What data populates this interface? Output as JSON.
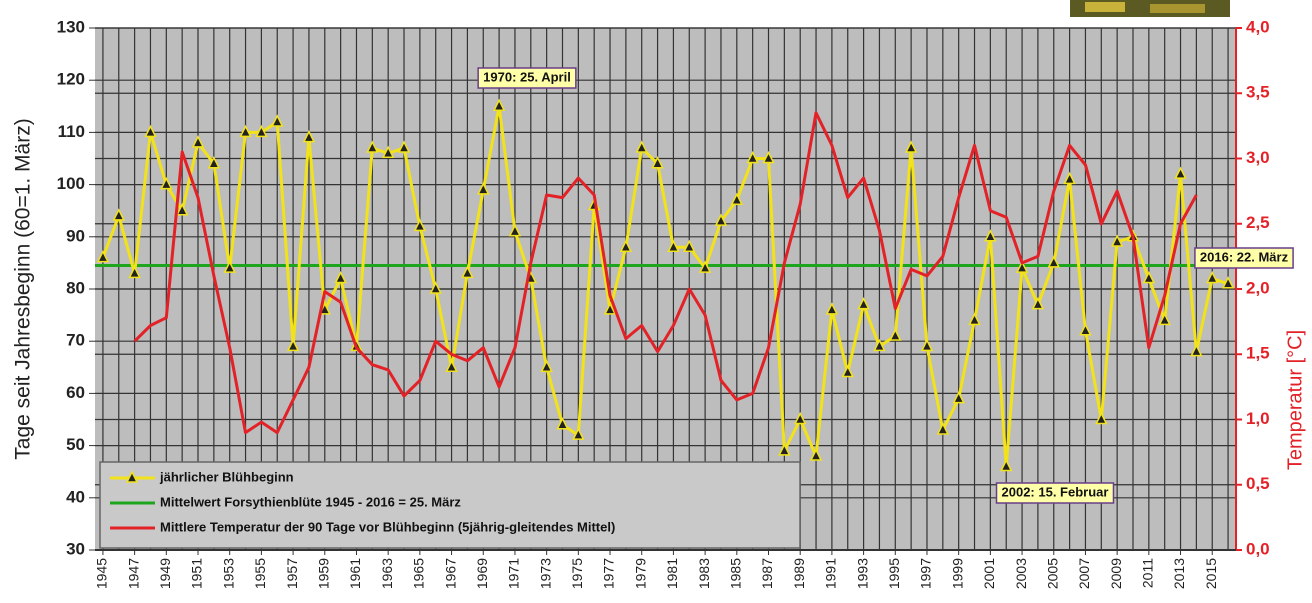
{
  "chart_data": {
    "type": "line",
    "x": [
      1945,
      1946,
      1947,
      1948,
      1949,
      1950,
      1951,
      1952,
      1953,
      1954,
      1955,
      1956,
      1957,
      1958,
      1959,
      1960,
      1961,
      1962,
      1963,
      1964,
      1965,
      1966,
      1967,
      1968,
      1969,
      1970,
      1971,
      1972,
      1973,
      1974,
      1975,
      1976,
      1977,
      1978,
      1979,
      1980,
      1981,
      1982,
      1983,
      1984,
      1985,
      1986,
      1987,
      1988,
      1989,
      1990,
      1991,
      1992,
      1993,
      1994,
      1995,
      1996,
      1997,
      1998,
      1999,
      2000,
      2001,
      2002,
      2003,
      2004,
      2005,
      2006,
      2007,
      2008,
      2009,
      2010,
      2011,
      2012,
      2013,
      2014,
      2015,
      2016
    ],
    "xlim": [
      1944.5,
      2016.5
    ],
    "xticks": [
      1945,
      1947,
      1949,
      1951,
      1953,
      1955,
      1957,
      1959,
      1961,
      1963,
      1965,
      1967,
      1969,
      1971,
      1973,
      1975,
      1977,
      1979,
      1981,
      1983,
      1985,
      1987,
      1989,
      1991,
      1993,
      1995,
      1997,
      1999,
      2001,
      2003,
      2005,
      2007,
      2009,
      2011,
      2013,
      2015
    ],
    "ylim": [
      30,
      130
    ],
    "yticks": [
      30,
      40,
      50,
      60,
      70,
      80,
      90,
      100,
      110,
      120,
      130
    ],
    "y2lim": [
      0,
      4
    ],
    "y2ticks": [
      {
        "value": 0,
        "label": "0,0"
      },
      {
        "value": 0.5,
        "label": "0,5"
      },
      {
        "value": 1,
        "label": "1,0"
      },
      {
        "value": 1.5,
        "label": "1,5"
      },
      {
        "value": 2,
        "label": "2,0"
      },
      {
        "value": 2.5,
        "label": "2,5"
      },
      {
        "value": 3,
        "label": "3,0"
      },
      {
        "value": 3.5,
        "label": "3,5"
      },
      {
        "value": 4,
        "label": "4,0"
      }
    ],
    "ylabel": "Tage seit Jahresbeginn (60=1. März)",
    "y2label": "Temperatur [°C]",
    "grid": true,
    "series": [
      {
        "name": "jährlicher Blühbeginn",
        "color": "#f2e21a",
        "values": [
          86,
          94,
          83,
          110,
          100,
          95,
          108,
          104,
          84,
          110,
          110,
          112,
          69,
          109,
          76,
          82,
          69,
          107,
          106,
          107,
          92,
          80,
          65,
          83,
          99,
          115,
          91,
          82,
          65,
          54,
          52,
          96,
          76,
          88,
          107,
          104,
          88,
          88,
          84,
          93,
          97,
          105,
          105,
          49,
          55,
          48,
          76,
          64,
          77,
          69,
          71,
          107,
          69,
          53,
          59,
          74,
          90,
          46,
          84,
          77,
          85,
          101,
          72,
          55,
          89,
          90,
          82,
          74,
          102,
          68,
          82,
          81
        ]
      },
      {
        "name": "Mittlere Temperatur der 90 Tage vor Blühbeginn (5jährig-gleitendes Mittel)",
        "color": "#e32228",
        "axis": "y2",
        "values": [
          null,
          null,
          1.6,
          1.72,
          1.78,
          3.05,
          2.7,
          2.1,
          1.55,
          0.9,
          0.98,
          0.9,
          1.15,
          1.4,
          1.98,
          1.9,
          1.55,
          1.42,
          1.38,
          1.18,
          1.3,
          1.6,
          1.5,
          1.45,
          1.55,
          1.25,
          1.55,
          2.2,
          2.72,
          2.7,
          2.85,
          2.72,
          1.95,
          1.62,
          1.72,
          1.52,
          1.72,
          2.0,
          1.8,
          1.3,
          1.15,
          1.2,
          1.55,
          2.2,
          2.65,
          3.35,
          3.1,
          2.7,
          2.85,
          2.45,
          1.85,
          2.15,
          2.1,
          2.25,
          2.7,
          3.1,
          2.6,
          2.55,
          2.2,
          2.25,
          2.75,
          3.1,
          2.95,
          2.5,
          2.75,
          2.4,
          1.55,
          1.95,
          2.5,
          2.72,
          null,
          null
        ]
      }
    ],
    "mean": {
      "name": "Mittelwert Forsythienblüte 1945 - 2016 = 25. März",
      "color": "#1ea51e",
      "value": 84.5
    },
    "annotations": [
      "1970: 25. April",
      "2016: 22. März",
      "2002: 15. Februar"
    ]
  }
}
